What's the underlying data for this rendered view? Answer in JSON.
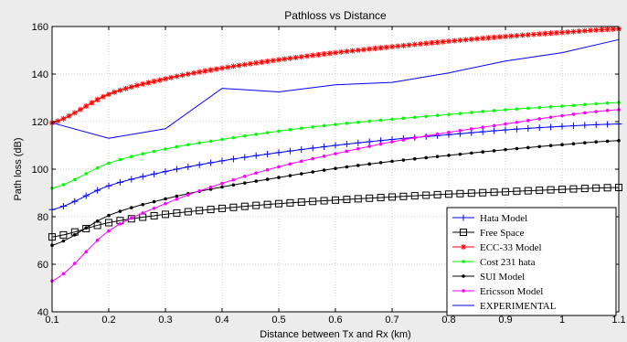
{
  "chart_data": {
    "type": "line",
    "title": "Pathloss vs Distance",
    "xlabel": "Distance between Tx and Rx (km)",
    "ylabel": "Path loss (dB)",
    "xlim": [
      0.1,
      1.1
    ],
    "ylim": [
      40,
      160
    ],
    "xticks": [
      "0.1",
      "0.2",
      "0.3",
      "0.4",
      "0.5",
      "0.6",
      "0.7",
      "0.8",
      "0.9",
      "1",
      "1.1"
    ],
    "yticks": [
      "40",
      "60",
      "80",
      "100",
      "120",
      "140",
      "160"
    ],
    "grid": true,
    "legend_position": "bottom-right",
    "series": [
      {
        "name": "Hata Model",
        "color": "#0000ff",
        "marker": "plus",
        "x": [
          0.1,
          0.2,
          0.3,
          0.4,
          0.5,
          0.6,
          0.7,
          0.8,
          0.9,
          1.0,
          1.1
        ],
        "y": [
          83,
          93,
          99,
          103.5,
          107,
          110,
          112.5,
          114.5,
          116.5,
          118,
          119
        ]
      },
      {
        "name": "Free Space",
        "color": "#000000",
        "marker": "square",
        "x": [
          0.1,
          0.2,
          0.3,
          0.4,
          0.5,
          0.6,
          0.7,
          0.8,
          0.9,
          1.0,
          1.1
        ],
        "y": [
          71.5,
          77.5,
          81,
          83.5,
          85.5,
          87,
          88.3,
          89.5,
          90.5,
          91.5,
          92.3
        ]
      },
      {
        "name": "ECC-33 Model",
        "color": "#ff0000",
        "marker": "star",
        "x": [
          0.1,
          0.2,
          0.3,
          0.4,
          0.5,
          0.6,
          0.7,
          0.8,
          0.9,
          1.0,
          1.1
        ],
        "y": [
          119.5,
          131.5,
          138,
          142.5,
          146,
          149,
          151.5,
          153.8,
          155.8,
          157.5,
          159
        ]
      },
      {
        "name": "Cost 231 hata",
        "color": "#00ff00",
        "marker": "dot",
        "x": [
          0.1,
          0.2,
          0.3,
          0.4,
          0.5,
          0.6,
          0.7,
          0.8,
          0.9,
          1.0,
          1.1
        ],
        "y": [
          92,
          102.5,
          108.5,
          112.5,
          116,
          118.8,
          121,
          123,
          125,
          126.5,
          128
        ]
      },
      {
        "name": "SUI Model",
        "color": "#000000",
        "marker": "dot",
        "x": [
          0.1,
          0.2,
          0.3,
          0.4,
          0.5,
          0.6,
          0.7,
          0.8,
          0.9,
          1.0,
          1.1
        ],
        "y": [
          68,
          80.5,
          87.5,
          92.5,
          96.5,
          100.3,
          103.3,
          105.8,
          108.2,
          110.3,
          112
        ]
      },
      {
        "name": "Ericsson Model",
        "color": "#ff00ff",
        "marker": "dot",
        "x": [
          0.1,
          0.2,
          0.3,
          0.4,
          0.5,
          0.6,
          0.7,
          0.8,
          0.9,
          1.0,
          1.1
        ],
        "y": [
          53,
          74,
          85.5,
          94,
          101,
          106.5,
          111.5,
          115.5,
          119,
          122.5,
          125
        ]
      },
      {
        "name": "EXPERIMENTAL",
        "color": "#0000ff",
        "marker": "none",
        "x": [
          0.1,
          0.2,
          0.3,
          0.4,
          0.5,
          0.6,
          0.7,
          0.8,
          0.9,
          1.0,
          1.1
        ],
        "y": [
          119.5,
          113,
          117,
          134,
          132.5,
          135.5,
          136.5,
          140.5,
          145.5,
          149,
          154.5
        ]
      }
    ]
  }
}
